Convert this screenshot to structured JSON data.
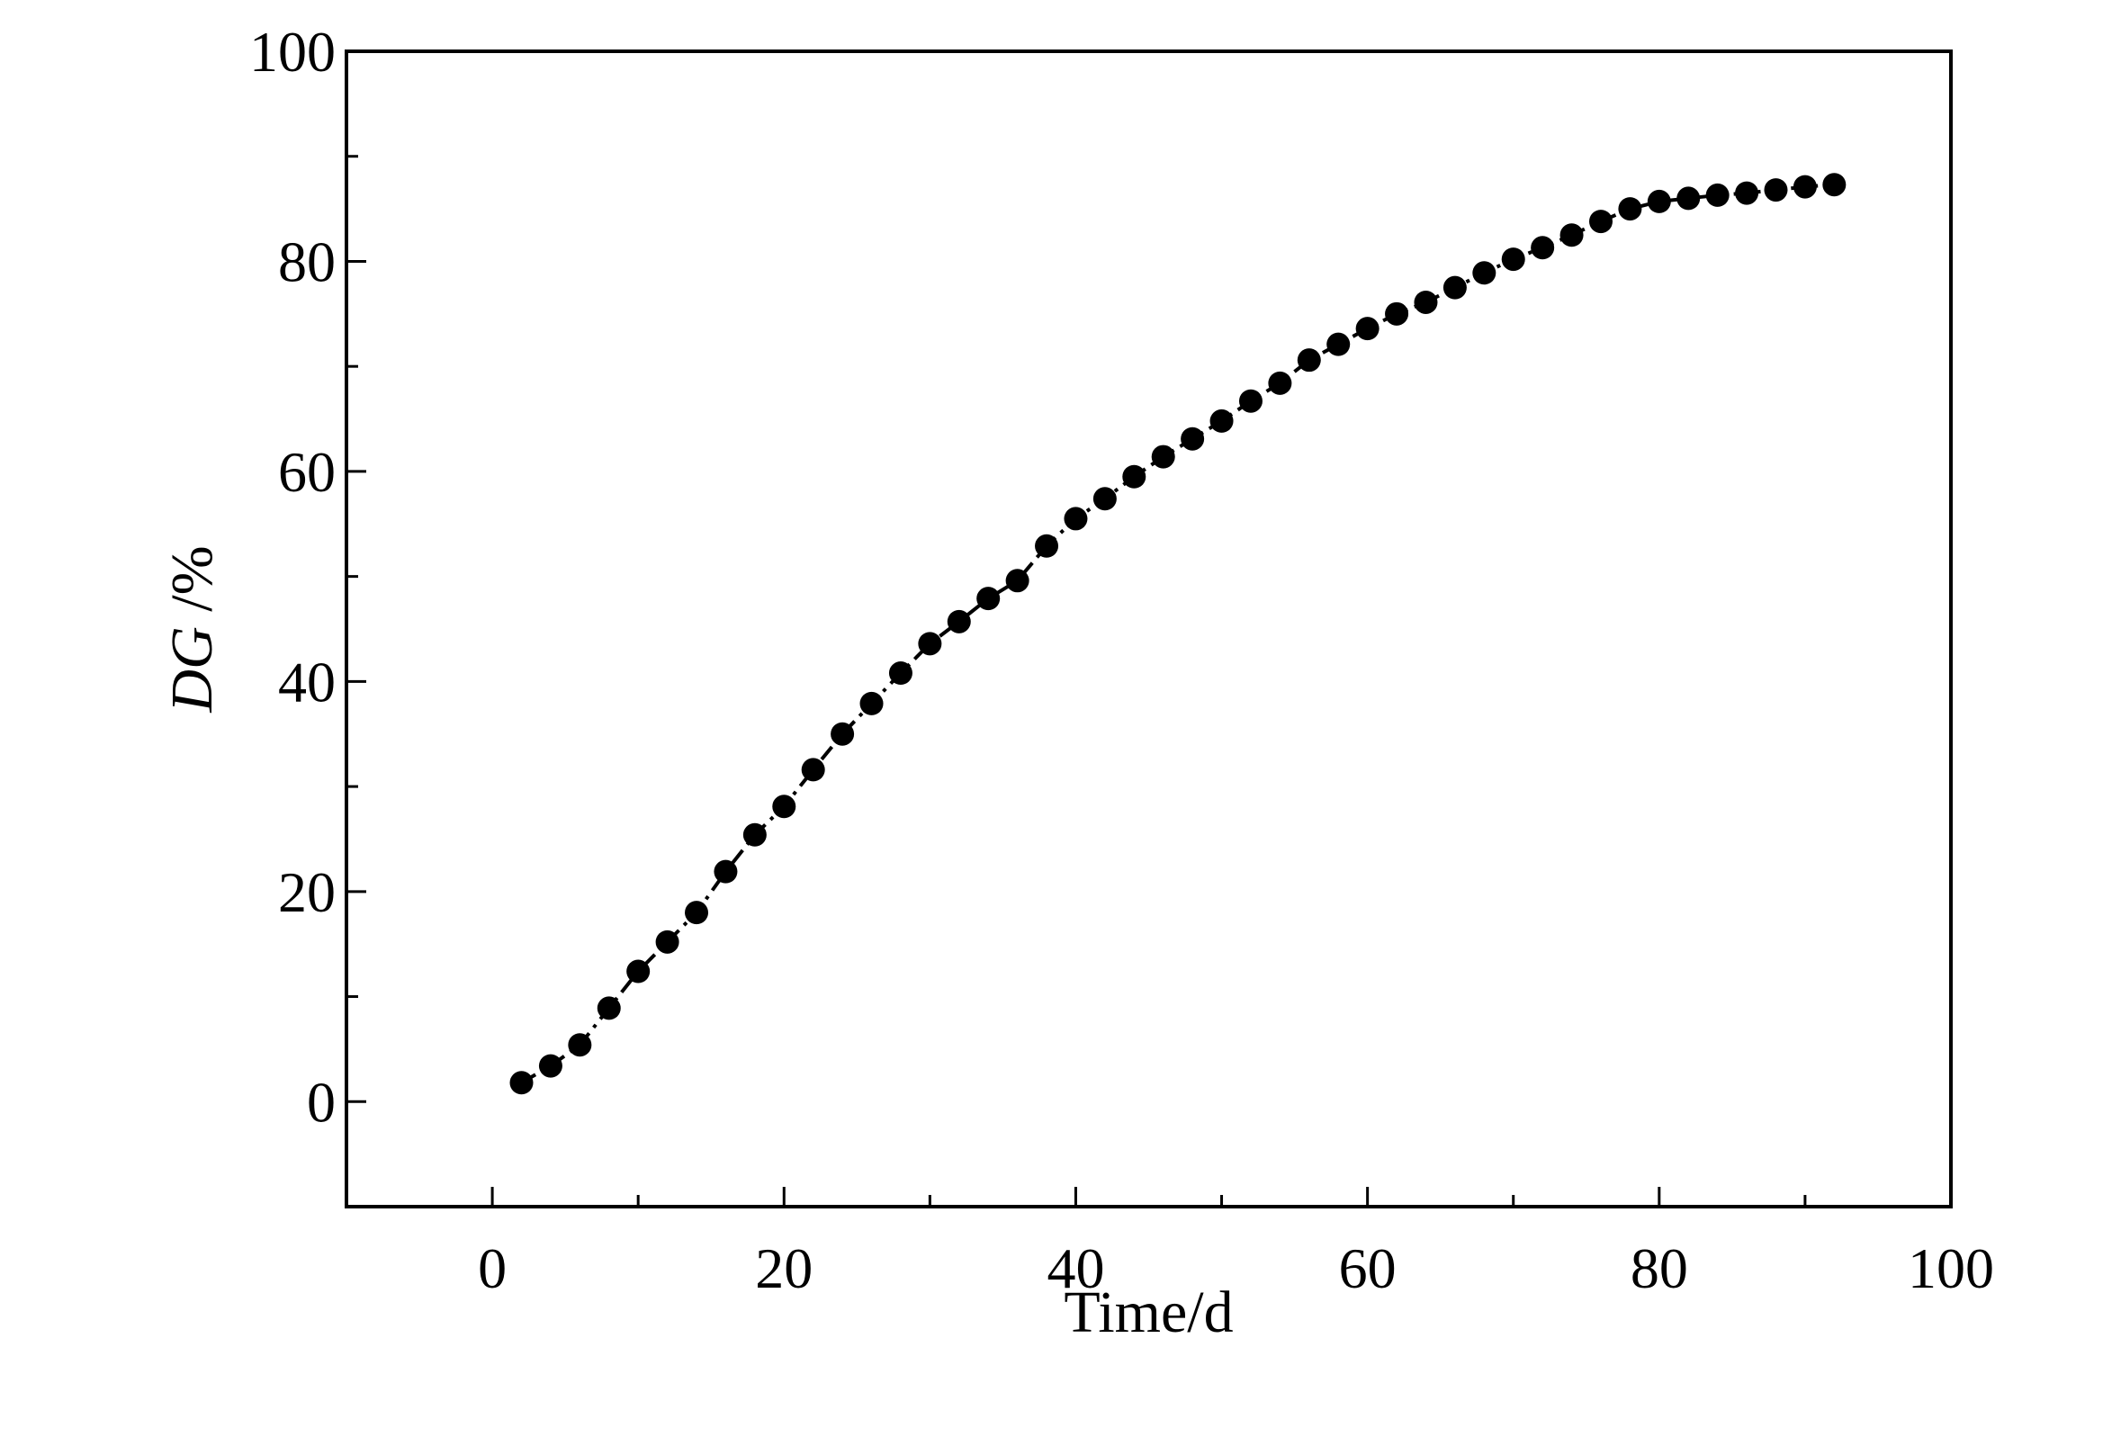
{
  "chart_data": {
    "type": "scatter",
    "title": "",
    "xlabel": "Time/d",
    "ylabel": {
      "italic": "DG",
      "rest": " /%"
    },
    "xlim": [
      -10,
      100
    ],
    "ylim": [
      -10,
      100
    ],
    "xticks": [
      0,
      20,
      40,
      60,
      80,
      100
    ],
    "yticks": [
      0,
      20,
      40,
      60,
      80,
      100
    ],
    "minor_tick_step": 10,
    "grid": false,
    "line_style": "dash-dot",
    "marker": "filled-circle",
    "color": "#000000",
    "series": [
      {
        "x": [
          2,
          4,
          6,
          8,
          10,
          12,
          14,
          16,
          18,
          20,
          22,
          24,
          26,
          28,
          30,
          32,
          34,
          36,
          38,
          40,
          42,
          44,
          46,
          48,
          50,
          52,
          54,
          56,
          58,
          60,
          62,
          64,
          66,
          68,
          70,
          72,
          74,
          76,
          78,
          80,
          82,
          84,
          86,
          88,
          90,
          92
        ],
        "y": [
          1.8,
          3.4,
          5.4,
          8.9,
          12.4,
          15.2,
          18.0,
          21.9,
          25.4,
          28.1,
          31.6,
          35.0,
          37.9,
          40.8,
          43.6,
          45.7,
          47.9,
          49.6,
          52.9,
          55.5,
          57.4,
          59.5,
          61.4,
          63.1,
          64.8,
          66.7,
          68.4,
          70.6,
          72.1,
          73.6,
          75.0,
          76.1,
          77.5,
          78.9,
          80.2,
          81.3,
          82.5,
          83.8,
          85.0,
          85.7,
          86.0,
          86.3,
          86.5,
          86.8,
          87.1,
          87.3
        ]
      }
    ]
  }
}
